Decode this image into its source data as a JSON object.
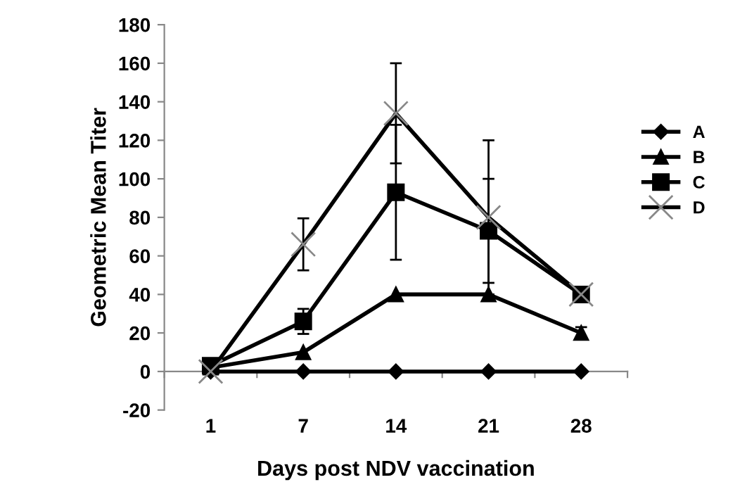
{
  "chart_data": {
    "type": "line",
    "xlabel": "Days post NDV vaccination",
    "ylabel": "Geometric Mean Titer",
    "categories": [
      "1",
      "7",
      "14",
      "21",
      "28"
    ],
    "ylim": [
      -20,
      180
    ],
    "yticks": [
      -20,
      0,
      20,
      40,
      60,
      80,
      100,
      120,
      140,
      160,
      180
    ],
    "legend": "right",
    "line_style": "solid",
    "series": [
      {
        "name": "A",
        "color": "#000000",
        "marker": "diamond",
        "values": [
          0,
          0,
          0,
          0,
          0
        ]
      },
      {
        "name": "B",
        "color": "#000000",
        "marker": "triangle",
        "values": [
          2,
          10,
          40,
          40,
          20
        ],
        "errors": [
          null,
          null,
          null,
          null,
          3
        ]
      },
      {
        "name": "C",
        "color": "#000000",
        "marker": "square",
        "values": [
          3,
          26,
          93,
          73,
          40
        ],
        "errors": [
          null,
          6.5,
          35,
          27,
          null
        ]
      },
      {
        "name": "D",
        "color": "#000000",
        "marker": "cross",
        "values": [
          0,
          66,
          134,
          80,
          40
        ],
        "errors": [
          null,
          13.5,
          26,
          40,
          null
        ]
      }
    ]
  }
}
